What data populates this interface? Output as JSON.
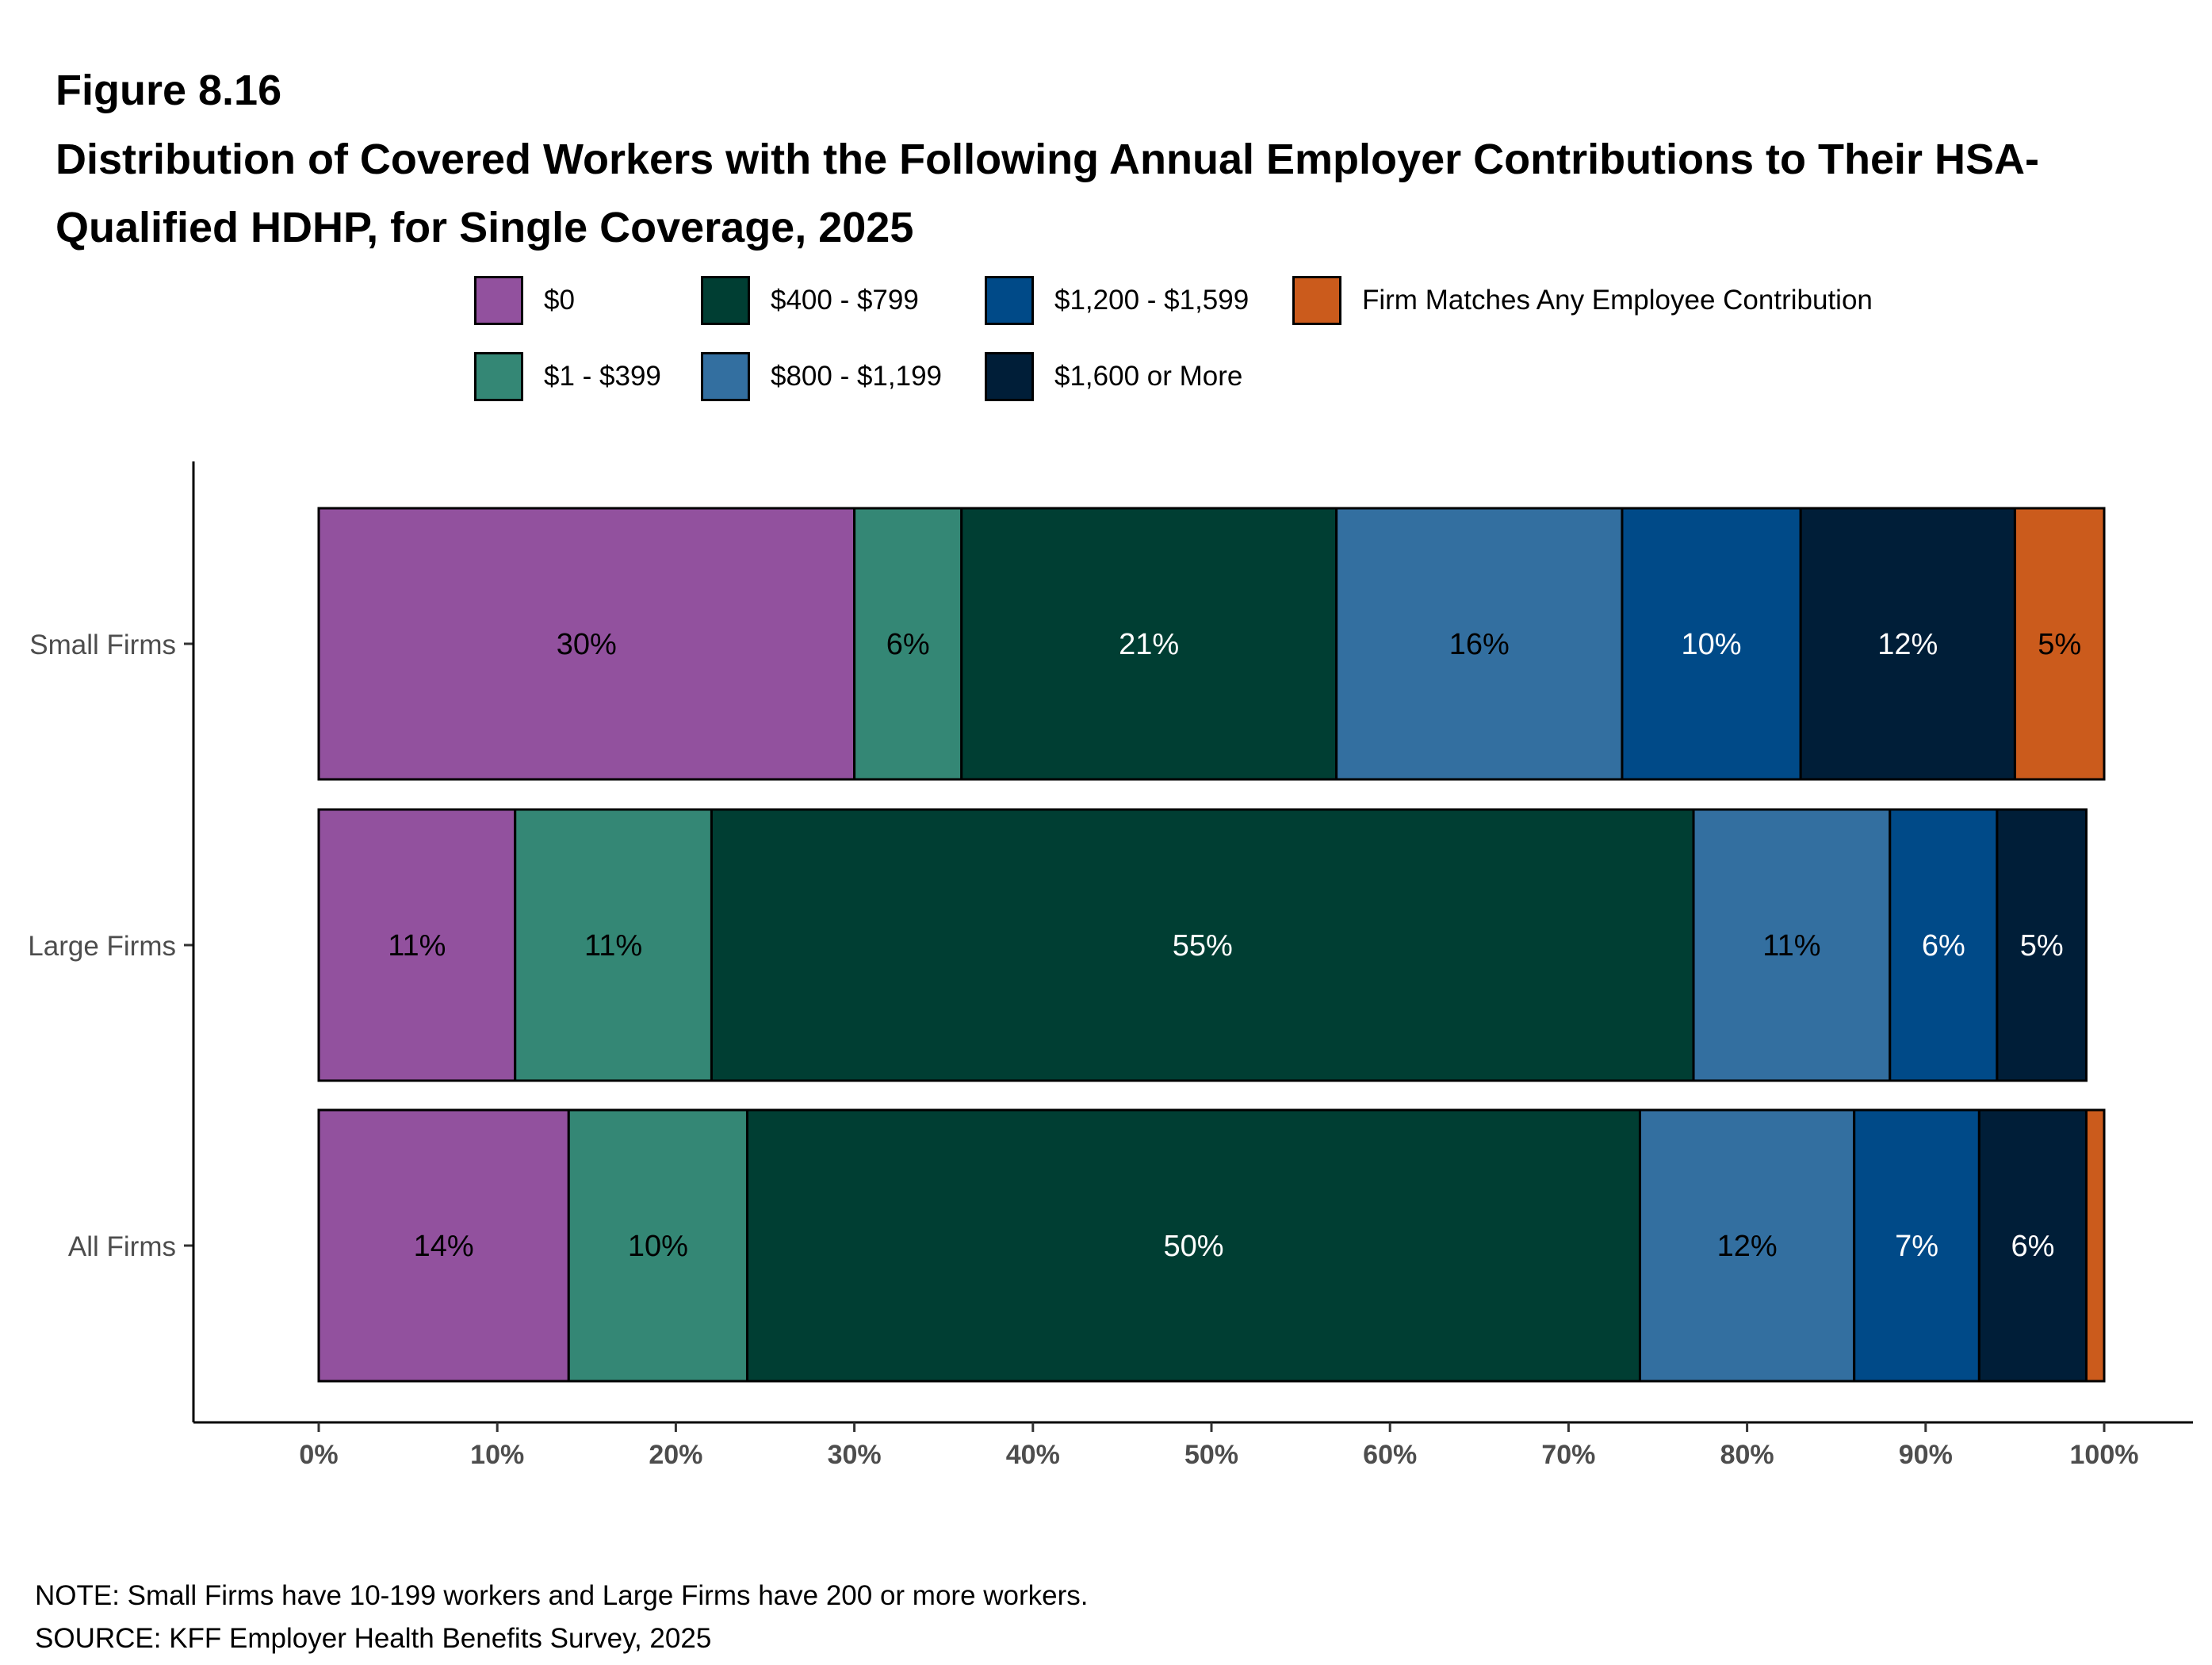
{
  "figure_label": "Figure 8.16",
  "title": "Distribution of Covered Workers with the Following Annual Employer Contributions to Their HSA-Qualified HDHP, for Single Coverage, 2025",
  "notes": {
    "note": "NOTE: Small Firms have 10-199 workers and Large Firms have 200 or more workers.",
    "source": "SOURCE: KFF Employer Health Benefits Survey, 2025"
  },
  "chart_data": {
    "type": "bar",
    "orientation": "horizontal",
    "stacked": true,
    "title": "Distribution of Covered Workers with the Following Annual Employer Contributions to Their HSA-Qualified HDHP, for Single Coverage, 2025",
    "xlabel": "",
    "ylabel": "",
    "xlim": [
      0,
      100
    ],
    "x_ticks": [
      "0%",
      "10%",
      "20%",
      "30%",
      "40%",
      "50%",
      "60%",
      "70%",
      "80%",
      "90%",
      "100%"
    ],
    "categories": [
      "Small Firms",
      "Large Firms",
      "All Firms"
    ],
    "grid": false,
    "legend_position": "top",
    "series": [
      {
        "name": "$0",
        "color": "#92519E",
        "label_color": "#000000",
        "values": [
          30,
          11,
          14
        ],
        "labels": [
          "30%",
          "11%",
          "14%"
        ]
      },
      {
        "name": "$1 - $399",
        "color": "#348775",
        "label_color": "#000000",
        "values": [
          6,
          11,
          10
        ],
        "labels": [
          "6%",
          "11%",
          "10%"
        ]
      },
      {
        "name": "$400 - $799",
        "color": "#003E33",
        "label_color": "#FFFFFF",
        "values": [
          21,
          55,
          50
        ],
        "labels": [
          "21%",
          "55%",
          "50%"
        ]
      },
      {
        "name": "$800 - $1,199",
        "color": "#336FA0",
        "label_color": "#000000",
        "values": [
          16,
          11,
          12
        ],
        "labels": [
          "16%",
          "11%",
          "12%"
        ]
      },
      {
        "name": "$1,200 - $1,599",
        "color": "#004A88",
        "label_color": "#FFFFFF",
        "values": [
          10,
          6,
          7
        ],
        "labels": [
          "10%",
          "6%",
          "7%"
        ]
      },
      {
        "name": "$1,600 or More",
        "color": "#001E38",
        "label_color": "#FFFFFF",
        "values": [
          12,
          5,
          6
        ],
        "labels": [
          "12%",
          "5%",
          "6%"
        ]
      },
      {
        "name": "Firm Matches Any Employee Contribution",
        "color": "#CB5B1C",
        "label_color": "#000000",
        "values": [
          5,
          0,
          1
        ],
        "labels": [
          "5%",
          "",
          ""
        ]
      }
    ]
  }
}
